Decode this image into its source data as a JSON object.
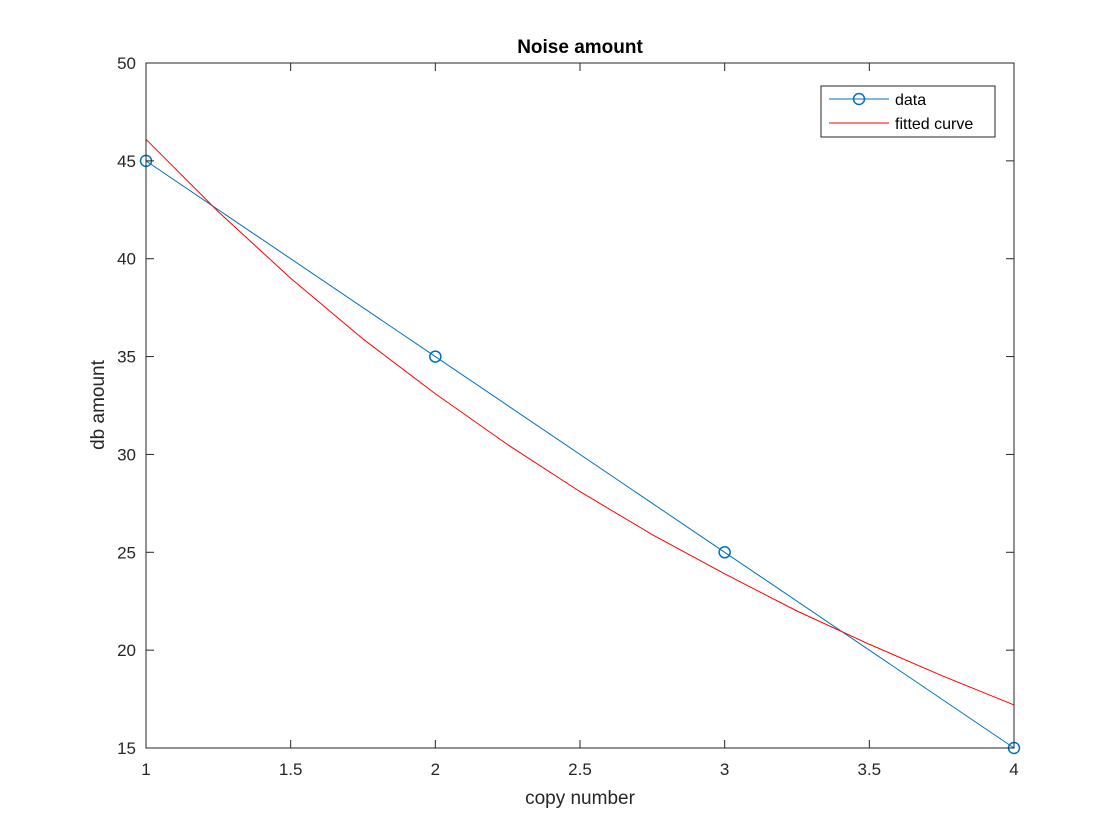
{
  "chart_data": {
    "type": "line",
    "title": "Noise amount",
    "xlabel": "copy number",
    "ylabel": "db amount",
    "xlim": [
      1,
      4
    ],
    "ylim": [
      15,
      50
    ],
    "xticks": [
      1,
      1.5,
      2,
      2.5,
      3,
      3.5,
      4
    ],
    "xtick_labels": [
      "1",
      "1.5",
      "2",
      "2.5",
      "3",
      "3.5",
      "4"
    ],
    "yticks": [
      15,
      20,
      25,
      30,
      35,
      40,
      45,
      50
    ],
    "ytick_labels": [
      "15",
      "20",
      "25",
      "30",
      "35",
      "40",
      "45",
      "50"
    ],
    "grid": false,
    "legend_position": "top-right",
    "series": [
      {
        "name": "data",
        "style": "line-with-circle-markers",
        "color": "#0072BD",
        "x": [
          1,
          2,
          3,
          4
        ],
        "y": [
          45,
          35,
          25,
          15
        ]
      },
      {
        "name": "fitted curve",
        "style": "line",
        "color": "#FF0000",
        "x": [
          1,
          1.25,
          1.5,
          1.75,
          2,
          2.25,
          2.5,
          2.75,
          3,
          3.25,
          3.5,
          3.75,
          4
        ],
        "y": [
          46.1,
          42.4,
          39.0,
          35.9,
          33.1,
          30.5,
          28.1,
          25.9,
          23.9,
          22.0,
          20.3,
          18.7,
          17.2
        ]
      }
    ]
  }
}
